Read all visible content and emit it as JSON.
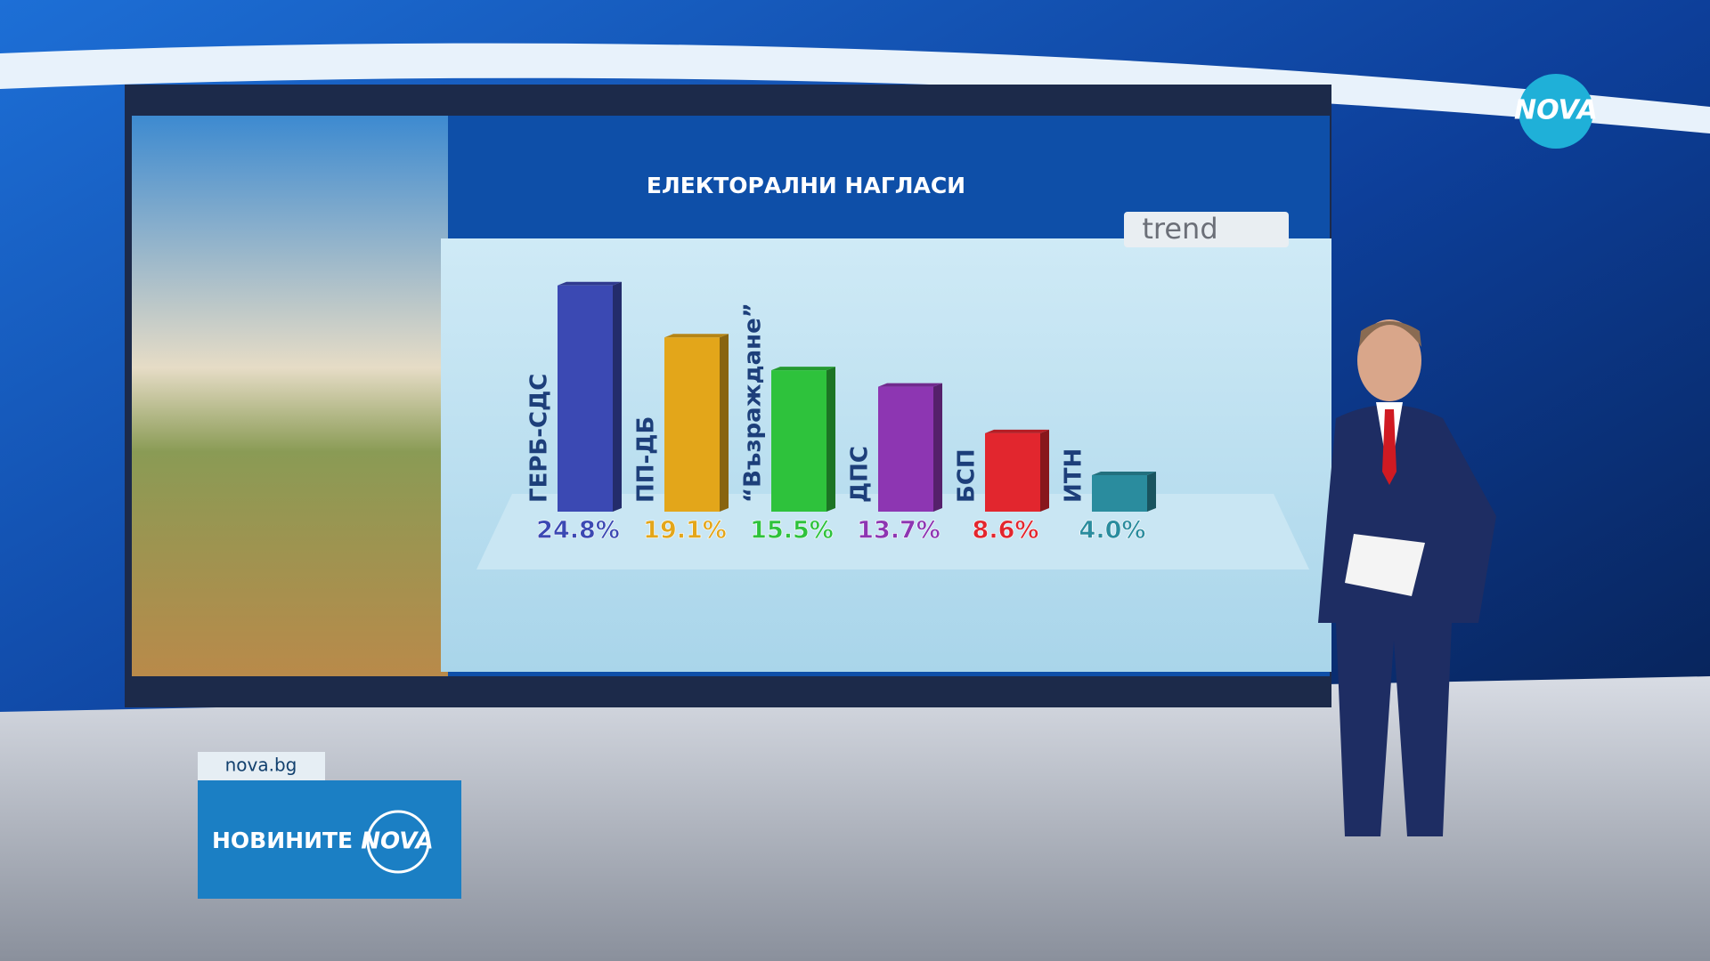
{
  "chart_data": {
    "type": "bar",
    "title": "ЕЛЕКТОРАЛНИ НАГЛАСИ",
    "source": "trend",
    "categories": [
      "ГЕРБ-СДС",
      "ПП-ДБ",
      "“Възраждане”",
      "ДПС",
      "БСП",
      "ИТН"
    ],
    "values": [
      24.8,
      19.1,
      15.5,
      13.7,
      8.6,
      4.0
    ],
    "value_labels": [
      "24.8%",
      "19.1%",
      "15.5%",
      "13.7%",
      "8.6%",
      "4.0%"
    ],
    "colors": [
      "#3b49b3",
      "#e3a61a",
      "#2ec23c",
      "#8d36b2",
      "#e2262e",
      "#2a8c9e"
    ]
  },
  "branding": {
    "logo": "NOVA",
    "website": "nova.bg",
    "show": "НОВИНИТЕ",
    "show_brand": "NOVA"
  }
}
